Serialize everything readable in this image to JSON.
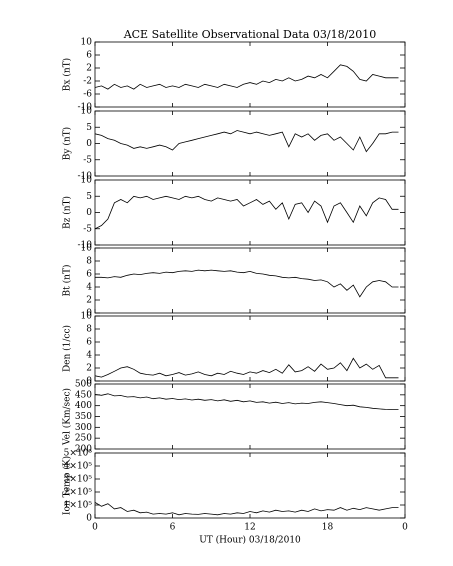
{
  "chart_data": [
    {
      "type": "line",
      "title": "ACE Satellite Observational Data   03/18/2010",
      "ylabel": "Bx (nT)",
      "ylim": [
        -10,
        10
      ],
      "yticks": [
        -10,
        -6,
        -2,
        2,
        6,
        10
      ],
      "color": "#000000",
      "x": [
        0,
        0.5,
        1,
        1.5,
        2,
        2.5,
        3,
        3.5,
        4,
        4.5,
        5,
        5.5,
        6,
        6.5,
        7,
        7.5,
        8,
        8.5,
        9,
        9.5,
        10,
        10.5,
        11,
        11.5,
        12,
        12.5,
        13,
        13.5,
        14,
        14.5,
        15,
        15.5,
        16,
        16.5,
        17,
        17.5,
        18,
        18.5,
        19,
        19.5,
        20,
        20.5,
        21,
        21.5,
        22,
        22.5,
        23,
        23.5
      ],
      "values": [
        -4,
        -3.5,
        -4.5,
        -3,
        -4,
        -3.5,
        -4.5,
        -3,
        -4,
        -3.5,
        -3,
        -4,
        -3.5,
        -4,
        -3,
        -3.5,
        -4,
        -3,
        -3.5,
        -4,
        -3,
        -3.5,
        -4,
        -3,
        -2.5,
        -3,
        -2,
        -2.5,
        -1.5,
        -2,
        -1,
        -2,
        -1.5,
        -0.5,
        -1,
        0,
        -1,
        1,
        3,
        2.5,
        1,
        -1.5,
        -2,
        0,
        -0.5,
        -1,
        -1,
        -1
      ]
    },
    {
      "type": "line",
      "ylabel": "By (nT)",
      "ylim": [
        -10,
        10
      ],
      "yticks": [
        -10,
        -5,
        0,
        5,
        10
      ],
      "color": "#000000",
      "x": [
        0,
        0.5,
        1,
        1.5,
        2,
        2.5,
        3,
        3.5,
        4,
        4.5,
        5,
        5.5,
        6,
        6.5,
        7,
        7.5,
        8,
        8.5,
        9,
        9.5,
        10,
        10.5,
        11,
        11.5,
        12,
        12.5,
        13,
        13.5,
        14,
        14.5,
        15,
        15.5,
        16,
        16.5,
        17,
        17.5,
        18,
        18.5,
        19,
        19.5,
        20,
        20.5,
        21,
        21.5,
        22,
        22.5,
        23,
        23.5
      ],
      "values": [
        3,
        2.5,
        1.5,
        1,
        0,
        -0.5,
        -1.5,
        -1,
        -1.5,
        -1,
        -0.5,
        -1,
        -2,
        0,
        0.5,
        1,
        1.5,
        2,
        2.5,
        3,
        3.5,
        3,
        4,
        3.5,
        3,
        3.5,
        3,
        2.5,
        3,
        3.5,
        -1,
        3,
        2,
        3,
        1,
        2.5,
        3,
        1,
        2,
        0,
        -2,
        2,
        -2.5,
        0,
        3,
        3,
        3.5,
        3.5
      ]
    },
    {
      "type": "line",
      "ylabel": "Bz (nT)",
      "ylim": [
        -10,
        10
      ],
      "yticks": [
        -10,
        -5,
        0,
        5,
        10
      ],
      "color": "#000000",
      "x": [
        0,
        0.5,
        1,
        1.5,
        2,
        2.5,
        3,
        3.5,
        4,
        4.5,
        5,
        5.5,
        6,
        6.5,
        7,
        7.5,
        8,
        8.5,
        9,
        9.5,
        10,
        10.5,
        11,
        11.5,
        12,
        12.5,
        13,
        13.5,
        14,
        14.5,
        15,
        15.5,
        16,
        16.5,
        17,
        17.5,
        18,
        18.5,
        19,
        19.5,
        20,
        20.5,
        21,
        21.5,
        22,
        22.5,
        23,
        23.5
      ],
      "values": [
        -5,
        -4,
        -2,
        3,
        4,
        3,
        5,
        4.5,
        5,
        4,
        4.5,
        5,
        4.5,
        4,
        5,
        4.5,
        5,
        4,
        3.5,
        4.5,
        4,
        3.5,
        4,
        2,
        3,
        4,
        2.5,
        3.5,
        1,
        3,
        -2,
        2.5,
        3,
        0,
        3.5,
        2,
        -3,
        2,
        3,
        0,
        -3,
        2,
        -1,
        3,
        4.5,
        4,
        1,
        1
      ]
    },
    {
      "type": "line",
      "ylabel": "Bt (nT)",
      "ylim": [
        0,
        10
      ],
      "yticks": [
        0,
        2,
        4,
        6,
        8,
        10
      ],
      "color": "#000000",
      "x": [
        0,
        0.5,
        1,
        1.5,
        2,
        2.5,
        3,
        3.5,
        4,
        4.5,
        5,
        5.5,
        6,
        6.5,
        7,
        7.5,
        8,
        8.5,
        9,
        9.5,
        10,
        10.5,
        11,
        11.5,
        12,
        12.5,
        13,
        13.5,
        14,
        14.5,
        15,
        15.5,
        16,
        16.5,
        17,
        17.5,
        18,
        18.5,
        19,
        19.5,
        20,
        20.5,
        21,
        21.5,
        22,
        22.5,
        23,
        23.5
      ],
      "values": [
        5.5,
        5.5,
        5.4,
        5.6,
        5.5,
        5.8,
        6,
        5.9,
        6.1,
        6.2,
        6.1,
        6.3,
        6.2,
        6.4,
        6.5,
        6.4,
        6.6,
        6.5,
        6.6,
        6.5,
        6.4,
        6.5,
        6.3,
        6.2,
        6.4,
        6.1,
        6,
        5.8,
        5.7,
        5.5,
        5.4,
        5.5,
        5.3,
        5.2,
        5,
        5.1,
        4.8,
        4,
        4.5,
        3.5,
        4.3,
        2.5,
        4,
        4.8,
        5,
        4.8,
        4,
        4
      ]
    },
    {
      "type": "line",
      "ylabel": "Den (1/cc)",
      "ylim": [
        0,
        10
      ],
      "yticks": [
        0,
        2,
        4,
        6,
        8,
        10
      ],
      "color": "#000000",
      "x": [
        0,
        0.5,
        1,
        1.5,
        2,
        2.5,
        3,
        3.5,
        4,
        4.5,
        5,
        5.5,
        6,
        6.5,
        7,
        7.5,
        8,
        8.5,
        9,
        9.5,
        10,
        10.5,
        11,
        11.5,
        12,
        12.5,
        13,
        13.5,
        14,
        14.5,
        15,
        15.5,
        16,
        16.5,
        17,
        17.5,
        18,
        18.5,
        19,
        19.5,
        20,
        20.5,
        21,
        21.5,
        22,
        22.5,
        23,
        23.5
      ],
      "values": [
        0.8,
        0.6,
        1,
        1.5,
        2,
        2.2,
        1.8,
        1.2,
        1,
        0.9,
        1.2,
        0.8,
        1,
        1.3,
        0.9,
        1.1,
        1.4,
        1,
        0.8,
        1.2,
        1,
        1.5,
        1.2,
        1,
        1.4,
        1.2,
        1.6,
        1.3,
        1.8,
        1.2,
        2.5,
        1.4,
        1.6,
        2.2,
        1.5,
        2.6,
        1.8,
        2,
        2.8,
        1.6,
        3.5,
        2,
        2.6,
        1.8,
        2.4,
        0.5,
        0.5,
        0.5
      ]
    },
    {
      "type": "line",
      "ylabel": "Vel (Km/sec)",
      "ylim": [
        200,
        500
      ],
      "yticks": [
        200,
        250,
        300,
        350,
        400,
        450,
        500
      ],
      "color": "#000000",
      "x": [
        0,
        0.5,
        1,
        1.5,
        2,
        2.5,
        3,
        3.5,
        4,
        4.5,
        5,
        5.5,
        6,
        6.5,
        7,
        7.5,
        8,
        8.5,
        9,
        9.5,
        10,
        10.5,
        11,
        11.5,
        12,
        12.5,
        13,
        13.5,
        14,
        14.5,
        15,
        15.5,
        16,
        16.5,
        17,
        17.5,
        18,
        18.5,
        19,
        19.5,
        20,
        20.5,
        21,
        21.5,
        22,
        22.5,
        23,
        23.5
      ],
      "values": [
        452,
        448,
        455,
        445,
        447,
        440,
        442,
        436,
        440,
        432,
        436,
        430,
        433,
        428,
        431,
        426,
        430,
        425,
        428,
        422,
        427,
        420,
        425,
        418,
        422,
        415,
        418,
        412,
        416,
        410,
        414,
        408,
        412,
        410,
        415,
        418,
        414,
        410,
        405,
        400,
        402,
        395,
        392,
        388,
        385,
        383,
        382,
        382
      ]
    },
    {
      "type": "line",
      "ylabel": "Ion Temp (K)",
      "xlabel": "UT (Hour)  03/18/2010",
      "ylim": [
        0,
        500000
      ],
      "yticks": [
        0,
        {
          "value": 100000,
          "label": "1×10⁵"
        },
        {
          "value": 200000,
          "label": "2×10⁵"
        },
        {
          "value": 300000,
          "label": "3×10⁵"
        },
        {
          "value": 400000,
          "label": "4×10⁵"
        },
        {
          "value": 500000,
          "label": "5×10⁵"
        }
      ],
      "xlim": [
        0,
        24
      ],
      "xticks": [
        0,
        6,
        12,
        18,
        {
          "value": 24,
          "label": "0"
        }
      ],
      "color": "#000000",
      "x": [
        0,
        0.5,
        1,
        1.5,
        2,
        2.5,
        3,
        3.5,
        4,
        4.5,
        5,
        5.5,
        6,
        6.5,
        7,
        7.5,
        8,
        8.5,
        9,
        9.5,
        10,
        10.5,
        11,
        11.5,
        12,
        12.5,
        13,
        13.5,
        14,
        14.5,
        15,
        15.5,
        16,
        16.5,
        17,
        17.5,
        18,
        18.5,
        19,
        19.5,
        20,
        20.5,
        21,
        21.5,
        22,
        22.5,
        23,
        23.5
      ],
      "values": [
        120000,
        90000,
        110000,
        70000,
        80000,
        50000,
        60000,
        40000,
        45000,
        30000,
        35000,
        30000,
        40000,
        25000,
        35000,
        30000,
        28000,
        35000,
        30000,
        25000,
        35000,
        30000,
        40000,
        35000,
        50000,
        40000,
        55000,
        45000,
        60000,
        50000,
        55000,
        45000,
        60000,
        50000,
        70000,
        55000,
        65000,
        60000,
        80000,
        60000,
        75000,
        65000,
        80000,
        70000,
        60000,
        70000,
        80000,
        80000
      ]
    }
  ]
}
